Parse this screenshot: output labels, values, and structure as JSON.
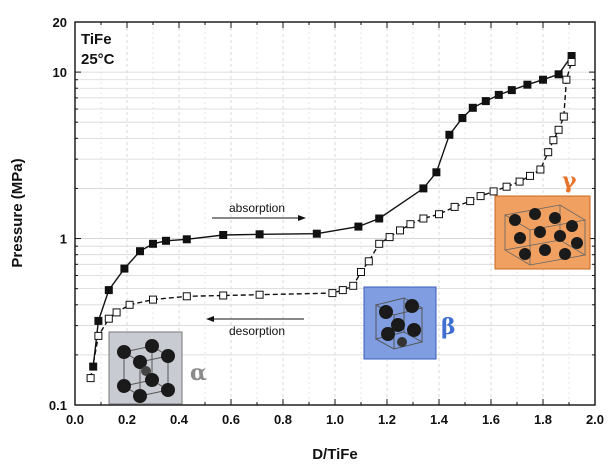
{
  "chart_data": {
    "type": "scatter",
    "sample_label": "TiFe",
    "temperature_label": "25°C",
    "xlabel": "D/TiFe",
    "ylabel": "Pressure (MPa)",
    "xlim": [
      0.0,
      2.0
    ],
    "ylim": [
      0.1,
      20
    ],
    "yscale": "log",
    "grid": true,
    "x_ticks": [
      "0.0",
      "0.2",
      "0.4",
      "0.6",
      "0.8",
      "1.0",
      "1.2",
      "1.4",
      "1.6",
      "1.8",
      "2.0"
    ],
    "y_ticks": [
      {
        "value": 0.1,
        "label": "0.1"
      },
      {
        "value": 1,
        "label": "1"
      },
      {
        "value": 10,
        "label": "10"
      },
      {
        "value": 20,
        "label": "20"
      }
    ],
    "series": [
      {
        "name": "absorption",
        "marker": "filled-square",
        "line": "solid",
        "color": "#111111",
        "points": [
          [
            0.07,
            0.17
          ],
          [
            0.09,
            0.32
          ],
          [
            0.13,
            0.49
          ],
          [
            0.19,
            0.66
          ],
          [
            0.25,
            0.84
          ],
          [
            0.3,
            0.93
          ],
          [
            0.35,
            0.97
          ],
          [
            0.43,
            0.99
          ],
          [
            0.57,
            1.05
          ],
          [
            0.71,
            1.06
          ],
          [
            0.93,
            1.07
          ],
          [
            1.09,
            1.18
          ],
          [
            1.17,
            1.32
          ],
          [
            1.34,
            2.0
          ],
          [
            1.39,
            2.5
          ],
          [
            1.44,
            4.2
          ],
          [
            1.49,
            5.3
          ],
          [
            1.53,
            6.1
          ],
          [
            1.58,
            6.7
          ],
          [
            1.63,
            7.3
          ],
          [
            1.68,
            7.8
          ],
          [
            1.74,
            8.4
          ],
          [
            1.8,
            9.0
          ],
          [
            1.86,
            9.7
          ],
          [
            1.91,
            12.5
          ]
        ]
      },
      {
        "name": "desorption",
        "marker": "open-square",
        "line": "dashed",
        "color": "#111111",
        "points": [
          [
            0.06,
            0.145
          ],
          [
            0.09,
            0.26
          ],
          [
            0.13,
            0.33
          ],
          [
            0.16,
            0.36
          ],
          [
            0.21,
            0.4
          ],
          [
            0.3,
            0.43
          ],
          [
            0.43,
            0.45
          ],
          [
            0.57,
            0.455
          ],
          [
            0.71,
            0.46
          ],
          [
            0.99,
            0.47
          ],
          [
            1.03,
            0.49
          ],
          [
            1.07,
            0.52
          ],
          [
            1.1,
            0.63
          ],
          [
            1.13,
            0.73
          ],
          [
            1.17,
            0.93
          ],
          [
            1.21,
            1.02
          ],
          [
            1.25,
            1.12
          ],
          [
            1.29,
            1.22
          ],
          [
            1.34,
            1.32
          ],
          [
            1.4,
            1.4
          ],
          [
            1.46,
            1.55
          ],
          [
            1.52,
            1.68
          ],
          [
            1.56,
            1.8
          ],
          [
            1.61,
            1.92
          ],
          [
            1.66,
            2.05
          ],
          [
            1.71,
            2.2
          ],
          [
            1.75,
            2.38
          ],
          [
            1.79,
            2.6
          ],
          [
            1.82,
            3.3
          ],
          [
            1.84,
            3.9
          ],
          [
            1.86,
            4.5
          ],
          [
            1.88,
            5.4
          ],
          [
            1.89,
            9.0
          ],
          [
            1.91,
            11.5
          ]
        ]
      }
    ],
    "annotations": {
      "absorption_label": "absorption",
      "desorption_label": "desorption"
    },
    "phases": [
      {
        "name": "α",
        "color": "#8a8a8a",
        "box_fill": "#c9cbd2"
      },
      {
        "name": "β",
        "color": "#3f6fd1",
        "box_fill": "#7f9de0"
      },
      {
        "name": "γ",
        "color": "#e8732b",
        "box_fill": "#f0a060"
      }
    ]
  }
}
